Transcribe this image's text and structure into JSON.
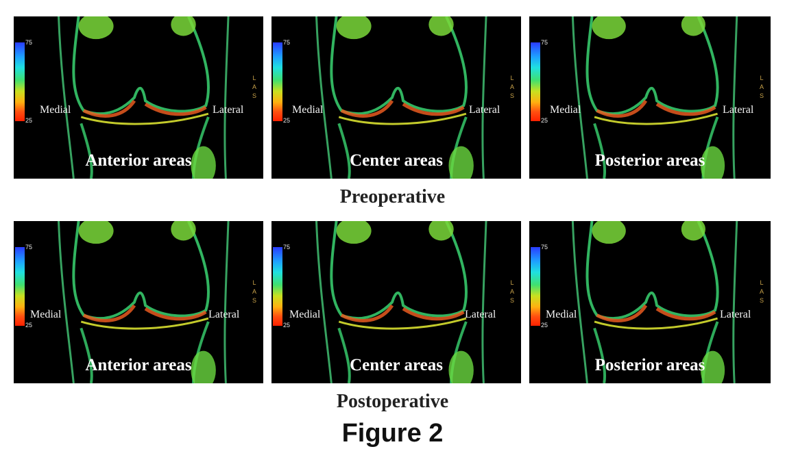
{
  "colorbar": {
    "max": "75",
    "min": "25",
    "gradient_colors": [
      "#2a3cff",
      "#1ea0ff",
      "#1fe0e0",
      "#40e070",
      "#c8e020",
      "#ffb010",
      "#ff5010",
      "#ff2000"
    ]
  },
  "orientation_marker": "LAS",
  "side_labels": {
    "medial": "Medial",
    "lateral": "Lateral"
  },
  "rows": [
    {
      "title": "Preoperative",
      "panels": [
        {
          "label": "Anterior areas"
        },
        {
          "label": "Center areas"
        },
        {
          "label": "Posterior areas"
        }
      ]
    },
    {
      "title": "Postoperative",
      "panels": [
        {
          "label": "Anterior areas"
        },
        {
          "label": "Center areas"
        },
        {
          "label": "Posterior areas"
        }
      ]
    }
  ],
  "figure_title": "Figure 2"
}
